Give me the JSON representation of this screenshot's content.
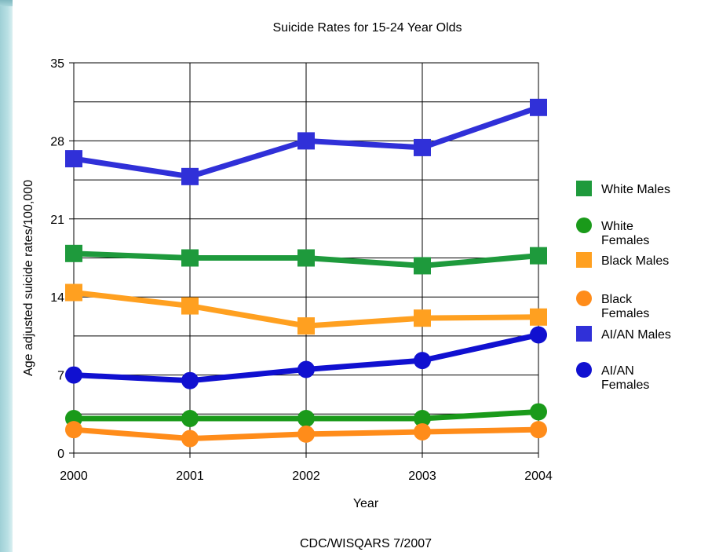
{
  "chart_data": {
    "type": "line",
    "title": "Suicide Rates for 15-24 Year Olds",
    "xlabel": "Year",
    "ylabel": "Age adjusted suicide rates/100,000",
    "footer": "CDC/WISQARS 7/2007",
    "x": [
      "2000",
      "2001",
      "2002",
      "2003",
      "2004"
    ],
    "ylim": [
      0,
      35
    ],
    "yticks": [
      "0",
      "7",
      "14",
      "21",
      "28",
      "35"
    ],
    "grid": true,
    "legend_position": "right",
    "series": [
      {
        "name": "White Males",
        "color": "#1e9a3c",
        "marker": "square",
        "values": [
          17.9,
          17.5,
          17.5,
          16.8,
          17.7
        ]
      },
      {
        "name": "White Females",
        "color": "#1a9a1a",
        "marker": "circle",
        "values": [
          3.1,
          3.1,
          3.1,
          3.1,
          3.7
        ]
      },
      {
        "name": "Black Males",
        "color": "#ffa020",
        "marker": "square",
        "values": [
          14.4,
          13.2,
          11.4,
          12.1,
          12.2
        ]
      },
      {
        "name": "Black Females",
        "color": "#ff8c1a",
        "marker": "circle",
        "values": [
          2.1,
          1.3,
          1.7,
          1.9,
          2.1
        ]
      },
      {
        "name": "AI/AN Males",
        "color": "#3030d8",
        "marker": "square",
        "values": [
          26.4,
          24.8,
          28.0,
          27.4,
          31.0
        ]
      },
      {
        "name": "AI/AN Females",
        "color": "#1010d0",
        "marker": "circle",
        "values": [
          7.0,
          6.5,
          7.5,
          8.3,
          10.6
        ]
      }
    ]
  }
}
